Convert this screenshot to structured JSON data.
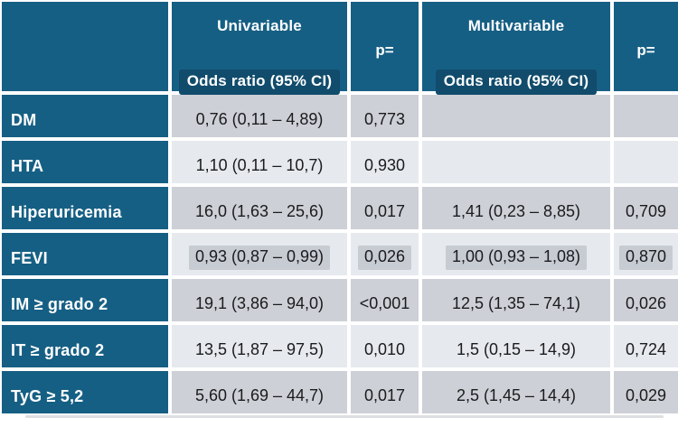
{
  "colors": {
    "header_teal": "#165F84",
    "header_highlight": "#114C6C",
    "row_dark": "#CDD0D6",
    "row_light": "#E6E9ED",
    "cell_highlight": "#C7CBD2",
    "text_dark": "#1B1B1D",
    "text_light": "#FFFFFF"
  },
  "chart_data": {
    "type": "table",
    "header": {
      "univariable_title": "Univariable",
      "univariable_subtitle": "Odds ratio (95% CI)",
      "p_label_univariable": "p=",
      "multivariable_title": "Multivariable",
      "multivariable_subtitle": "Odds ratio (95% CI)",
      "p_label_multivariable": "p="
    },
    "columns": [
      "",
      "Univariable Odds ratio (95% CI)",
      "p=",
      "Multivariable Odds ratio (95% CI)",
      "p="
    ],
    "rows": [
      {
        "label": "DM",
        "uni_or": "0,76 (0,11 – 4,89)",
        "uni_p": "0,773",
        "multi_or": "",
        "multi_p": "",
        "highlighted": false
      },
      {
        "label": "HTA",
        "uni_or": "1,10 (0,11 – 10,7)",
        "uni_p": "0,930",
        "multi_or": "",
        "multi_p": "",
        "highlighted": false
      },
      {
        "label": "Hiperuricemia",
        "uni_or": "16,0 (1,63 – 25,6)",
        "uni_p": "0,017",
        "multi_or": "1,41 (0,23 – 8,85)",
        "multi_p": "0,709",
        "highlighted": false
      },
      {
        "label": "FEVI",
        "uni_or": "0,93 (0,87 – 0,99)",
        "uni_p": "0,026",
        "multi_or": "1,00 (0,93 – 1,08)",
        "multi_p": "0,870",
        "highlighted": true
      },
      {
        "label": "IM ≥ grado 2",
        "uni_or": "19,1 (3,86 – 94,0)",
        "uni_p": "<0,001",
        "multi_or": "12,5 (1,35 – 74,1)",
        "multi_p": "0,026",
        "highlighted": false
      },
      {
        "label": "IT ≥ grado 2",
        "uni_or": "13,5 (1,87 – 97,5)",
        "uni_p": "0,010",
        "multi_or": "1,5 (0,15 – 14,9)",
        "multi_p": "0,724",
        "highlighted": false
      },
      {
        "label": "TyG ≥ 5,2",
        "uni_or": "5,60 (1,69 – 44,7)",
        "uni_p": "0,017",
        "multi_or": "2,5 (1,45 – 14,4)",
        "multi_p": "0,029",
        "highlighted": false
      }
    ]
  }
}
